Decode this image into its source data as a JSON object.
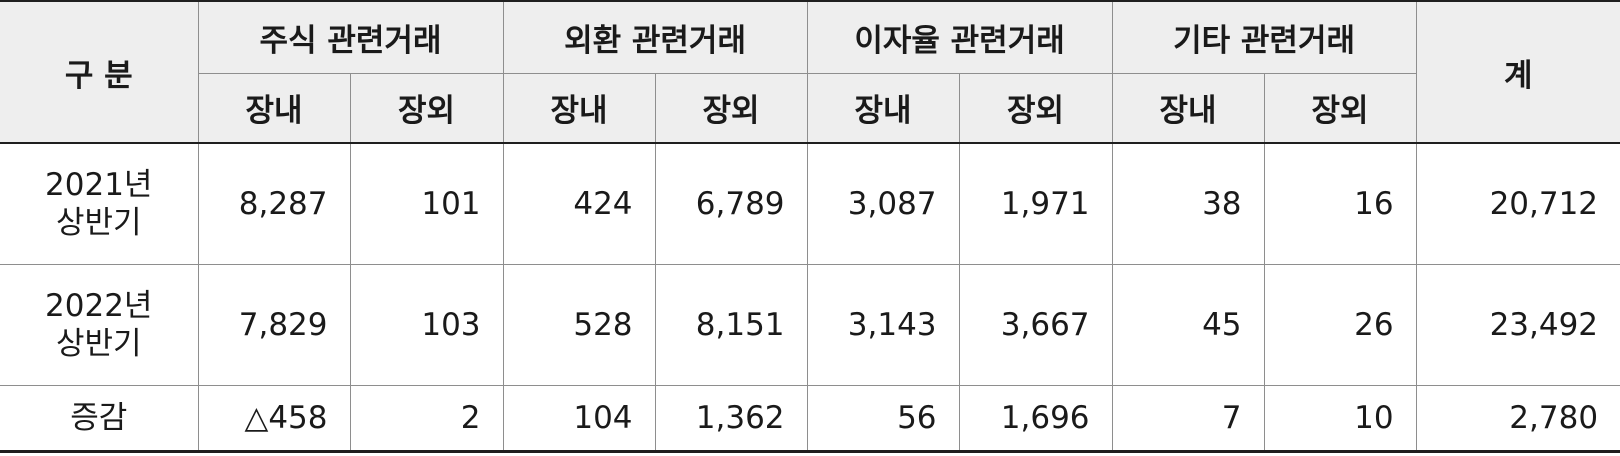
{
  "header": {
    "category": "구 분",
    "groups": [
      "주식 관련거래",
      "외환 관련거래",
      "이자율 관련거래",
      "기타 관련거래"
    ],
    "sub": [
      "장내",
      "장외"
    ],
    "total": "계"
  },
  "rows": [
    {
      "label_line1": "2021년",
      "label_line2": "상반기",
      "values": [
        "8,287",
        "101",
        "424",
        "6,789",
        "3,087",
        "1,971",
        "38",
        "16",
        "20,712"
      ]
    },
    {
      "label_line1": "2022년",
      "label_line2": "상반기",
      "values": [
        "7,829",
        "103",
        "528",
        "8,151",
        "3,143",
        "3,667",
        "45",
        "26",
        "23,492"
      ]
    },
    {
      "label_line1": "증감",
      "values": [
        "△458",
        "2",
        "104",
        "1,362",
        "56",
        "1,696",
        "7",
        "10",
        "2,780"
      ]
    }
  ]
}
